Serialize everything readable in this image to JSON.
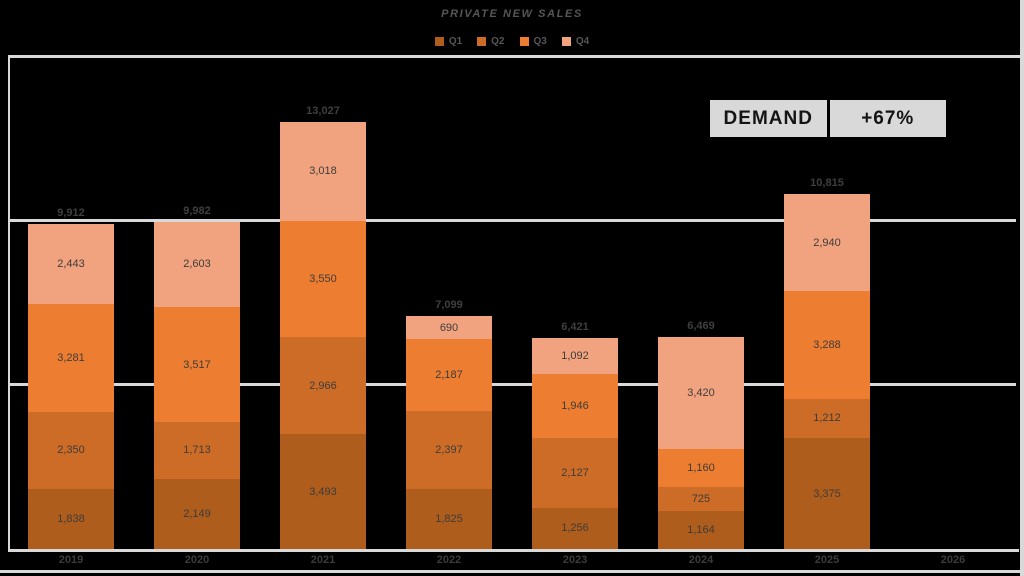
{
  "chart_data": {
    "type": "bar",
    "stacked": true,
    "title": "PRIVATE NEW SALES",
    "xlabel": "",
    "ylabel": "",
    "ylim": [
      0,
      15000
    ],
    "gridlines": [
      0,
      5000,
      10000,
      15000
    ],
    "grid": true,
    "legend_position": "top",
    "categories": [
      "2019",
      "2020",
      "2021",
      "2022",
      "2023",
      "2024",
      "2025",
      "2026"
    ],
    "series": [
      {
        "name": "Q1",
        "color": "#AE5D1D",
        "values": [
          1838,
          2149,
          3493,
          1825,
          1256,
          1164,
          3375,
          null
        ]
      },
      {
        "name": "Q2",
        "color": "#CC6C27",
        "values": [
          2350,
          1713,
          2966,
          2397,
          2127,
          725,
          1212,
          null
        ]
      },
      {
        "name": "Q3",
        "color": "#ED7D31",
        "values": [
          3281,
          3517,
          3550,
          2187,
          1946,
          1160,
          3288,
          null
        ]
      },
      {
        "name": "Q4",
        "color": "#F1A380",
        "values": [
          2443,
          2603,
          3018,
          690,
          1092,
          3420,
          2940,
          null
        ]
      }
    ],
    "totals": [
      9912,
      9982,
      13027,
      7099,
      6421,
      6469,
      10815,
      null
    ]
  },
  "callout": {
    "label": "DEMAND",
    "value": "+67%"
  },
  "colors": {
    "background": "#000000",
    "gridline": "#D9D9D9",
    "label_text": "#3F3F3F",
    "title_text": "#565656",
    "callout_bg": "#D9D9D9"
  }
}
